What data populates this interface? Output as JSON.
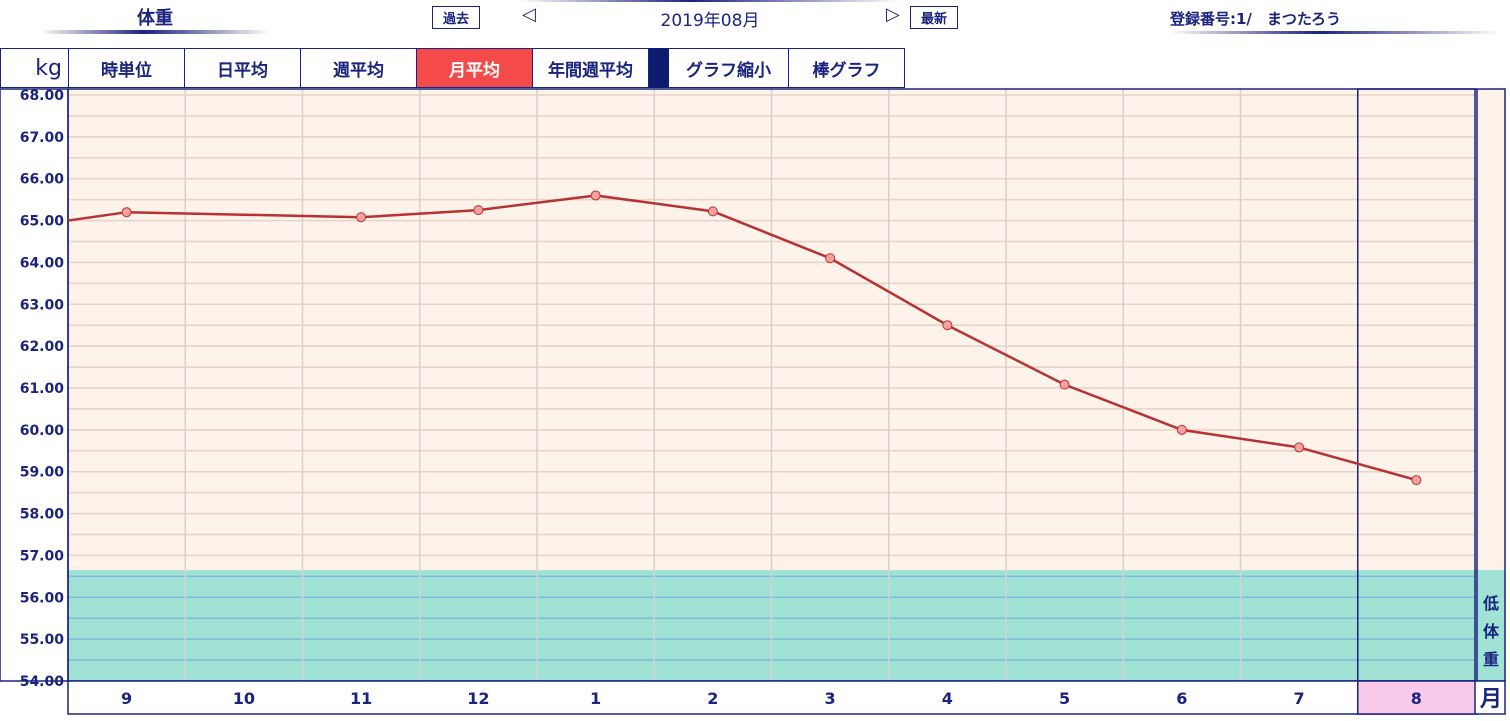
{
  "header": {
    "title": "体重",
    "prev_label": "過去",
    "period": "2019年08月",
    "latest_label": "最新",
    "user": "登録番号:1/　まつたろう"
  },
  "tabs": [
    {
      "label": "時単位"
    },
    {
      "label": "日平均"
    },
    {
      "label": "週平均"
    },
    {
      "label": "月平均",
      "active": true
    },
    {
      "label": "年間週平均"
    },
    {
      "label": "グラフ縮小"
    },
    {
      "label": "棒グラフ"
    }
  ],
  "unit_label": "kg",
  "axis_unit_label": "月",
  "zone_label": "低体重",
  "colors": {
    "line": "#b83232",
    "marker": "#f7a0a0",
    "plot_bg": "#fdf3ea",
    "low_zone": "#a0e3d5",
    "accent": "#f44a4a",
    "highlight_month": "#f9c9ea",
    "frame": "#1a237e"
  },
  "chart_data": {
    "type": "line",
    "categories": [
      "9",
      "10",
      "11",
      "12",
      "1",
      "2",
      "3",
      "4",
      "5",
      "6",
      "7",
      "8"
    ],
    "values": [
      65.2,
      null,
      65.08,
      65.25,
      65.6,
      65.22,
      64.1,
      62.5,
      61.08,
      60.0,
      59.58,
      58.8
    ],
    "start_value": 65.0,
    "ylim": [
      54,
      68
    ],
    "yticks": [
      "68.00",
      "67.00",
      "66.00",
      "65.00",
      "64.00",
      "63.00",
      "62.00",
      "61.00",
      "60.00",
      "59.00",
      "58.00",
      "57.00",
      "56.00",
      "55.00",
      "54.00"
    ],
    "low_zone_max": 56.65,
    "highlight_category": "8",
    "grid": true
  }
}
